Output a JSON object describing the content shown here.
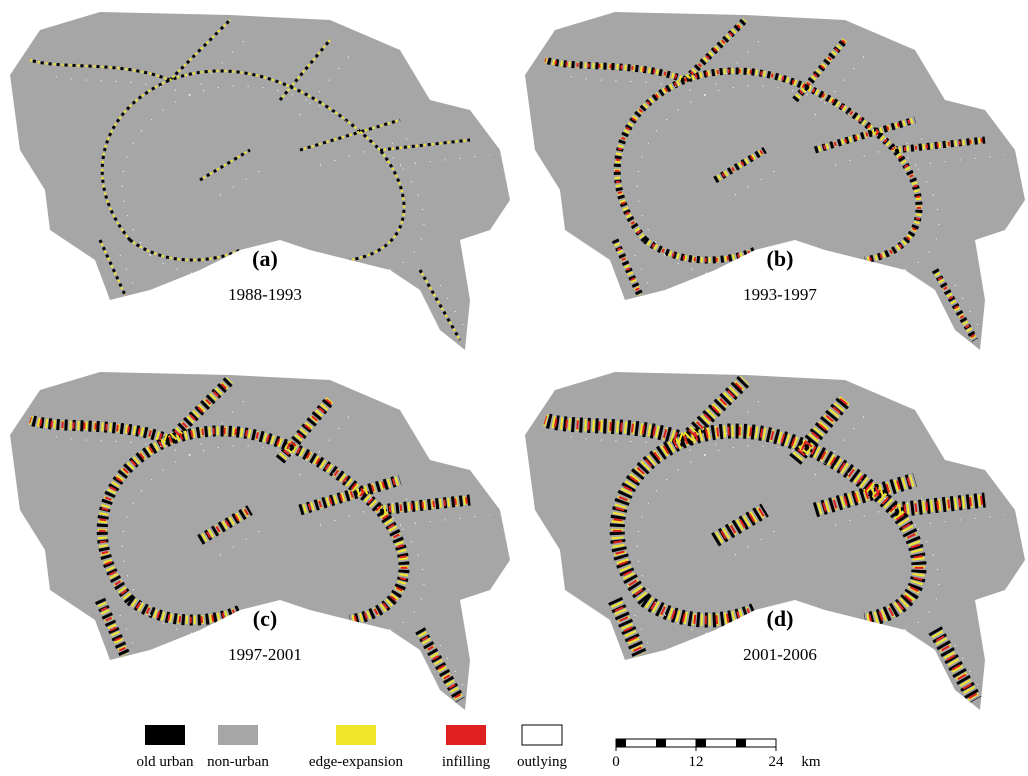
{
  "panels": [
    {
      "label": "(a)",
      "period": "1988-1993"
    },
    {
      "label": "(b)",
      "period": "1993-1997"
    },
    {
      "label": "(c)",
      "period": "1997-2001"
    },
    {
      "label": "(d)",
      "period": "2001-2006"
    }
  ],
  "legend": [
    {
      "name": "old urban",
      "color": "#000000"
    },
    {
      "name": "non-urban",
      "color": "#a6a6a6"
    },
    {
      "name": "edge-expansion",
      "color": "#f0e62a"
    },
    {
      "name": "infilling",
      "color": "#e02020"
    },
    {
      "name": "outlying",
      "color": "#ffffff"
    }
  ],
  "scale_bar": {
    "ticks": [
      0,
      12,
      24
    ],
    "unit": "km"
  }
}
